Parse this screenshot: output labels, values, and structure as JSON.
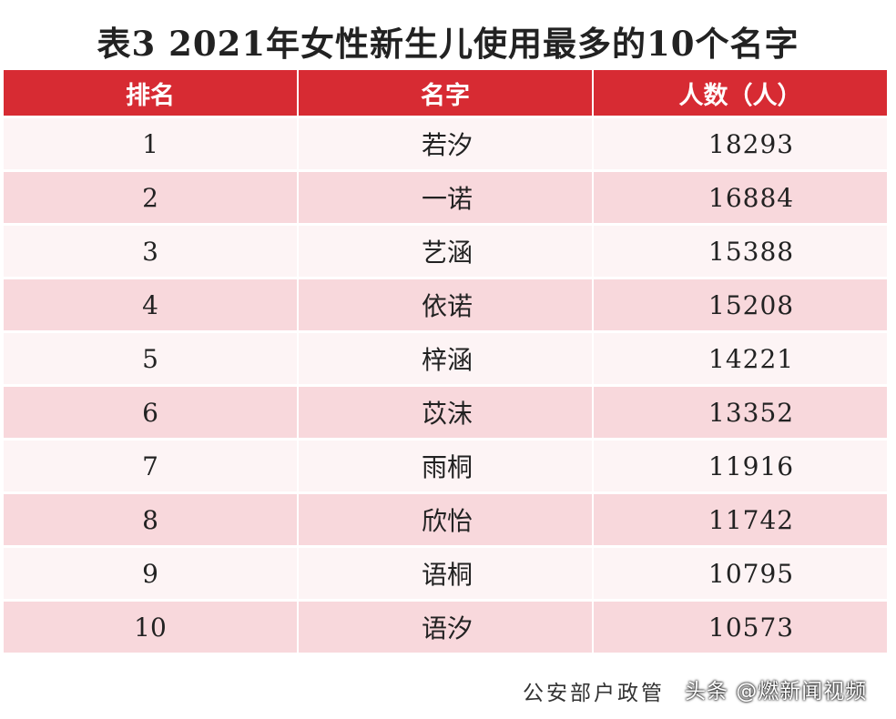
{
  "title": "表3  2021年女性新生儿使用最多的10个名字",
  "table": {
    "headers": [
      "排名",
      "名字",
      "人数（人）"
    ],
    "rows": [
      {
        "rank": "1",
        "name": "若汐",
        "count": "18293"
      },
      {
        "rank": "2",
        "name": "一诺",
        "count": "16884"
      },
      {
        "rank": "3",
        "name": "艺涵",
        "count": "15388"
      },
      {
        "rank": "4",
        "name": "依诺",
        "count": "15208"
      },
      {
        "rank": "5",
        "name": "梓涵",
        "count": "14221"
      },
      {
        "rank": "6",
        "name": "苡沫",
        "count": "13352"
      },
      {
        "rank": "7",
        "name": "雨桐",
        "count": "11916"
      },
      {
        "rank": "8",
        "name": "欣怡",
        "count": "11742"
      },
      {
        "rank": "9",
        "name": "语桐",
        "count": "10795"
      },
      {
        "rank": "10",
        "name": "语汐",
        "count": "10573"
      }
    ]
  },
  "source": "公安部户政管",
  "watermark": "头条 @燃新闻视频",
  "colors": {
    "header_bg": "#d72b33",
    "row_light": "#fdf4f5",
    "row_dark": "#f8d8dc"
  }
}
